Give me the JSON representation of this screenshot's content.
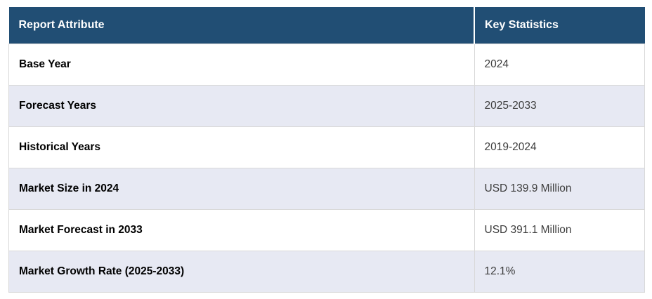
{
  "chart_data": {
    "type": "table",
    "columns": [
      "Report Attribute",
      "Key Statistics"
    ],
    "rows": [
      [
        "Base Year",
        "2024"
      ],
      [
        "Forecast Years",
        "2025-2033"
      ],
      [
        "Historical Years",
        "2019-2024"
      ],
      [
        "Market Size in 2024",
        "USD 139.9 Million"
      ],
      [
        "Market Forecast in 2033",
        "USD 391.1 Million"
      ],
      [
        "Market Growth Rate (2025-2033)",
        "12.1%"
      ]
    ],
    "layout": {
      "header_position": "top",
      "alternating_rows": true,
      "grid": true
    }
  },
  "colors": {
    "header_bg": "#214e74",
    "header_text": "#ffffff",
    "row_bg": "#ffffff",
    "row_alt_bg": "#e7e9f3",
    "border": "#d9d9d9",
    "attribute_text": "#000000",
    "value_text": "#3d3d3d"
  }
}
